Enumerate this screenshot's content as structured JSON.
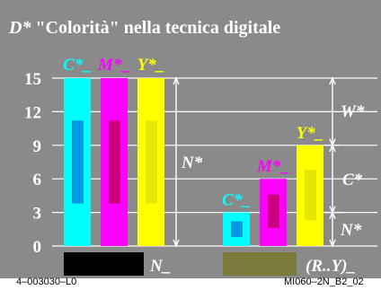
{
  "title": {
    "prefix": "D*",
    "text": "\"Colorità\" nella tecnica digitale"
  },
  "footer": {
    "left": "4–003030–L0",
    "right": "MI060–2N_B2_02"
  },
  "chart_data": {
    "type": "bar",
    "ylim": [
      0,
      15
    ],
    "yticks": [
      "0",
      "3",
      "6",
      "9",
      "12",
      "15"
    ],
    "series": [
      {
        "name": "C*_",
        "value": 15,
        "color": "#00ffff",
        "inner_color": "#0099e6",
        "inner_range": [
          3.8,
          11.2
        ],
        "group": "left"
      },
      {
        "name": "M*_",
        "value": 15,
        "color": "#ff00ff",
        "inner_color": "#cc0080",
        "inner_range": [
          3.8,
          11.2
        ],
        "group": "left"
      },
      {
        "name": "Y*_",
        "value": 15,
        "color": "#ffff00",
        "inner_color": "#e6e600",
        "inner_range": [
          3.8,
          11.2
        ],
        "group": "left"
      },
      {
        "name": "C*_",
        "value": 3,
        "color": "#00ffff",
        "inner_color": "#0099e6",
        "inner_range": [
          0.8,
          2.2
        ],
        "group": "right"
      },
      {
        "name": "M*_",
        "value": 6,
        "color": "#ff00ff",
        "inner_color": "#cc0080",
        "inner_range": [
          1.6,
          4.6
        ],
        "group": "right"
      },
      {
        "name": "Y*_",
        "value": 9,
        "color": "#ffff00",
        "inner_color": "#e6e600",
        "inner_range": [
          2.3,
          6.8
        ],
        "group": "right"
      }
    ],
    "annotations": {
      "left_bracket": "N*",
      "right_top": "W*",
      "right_mid": "C*",
      "right_bottom": "N*"
    },
    "swatches": [
      {
        "label": "N_",
        "color": "#000000"
      },
      {
        "label": "(R..Y)_",
        "color": "#7a7a3a"
      }
    ]
  }
}
